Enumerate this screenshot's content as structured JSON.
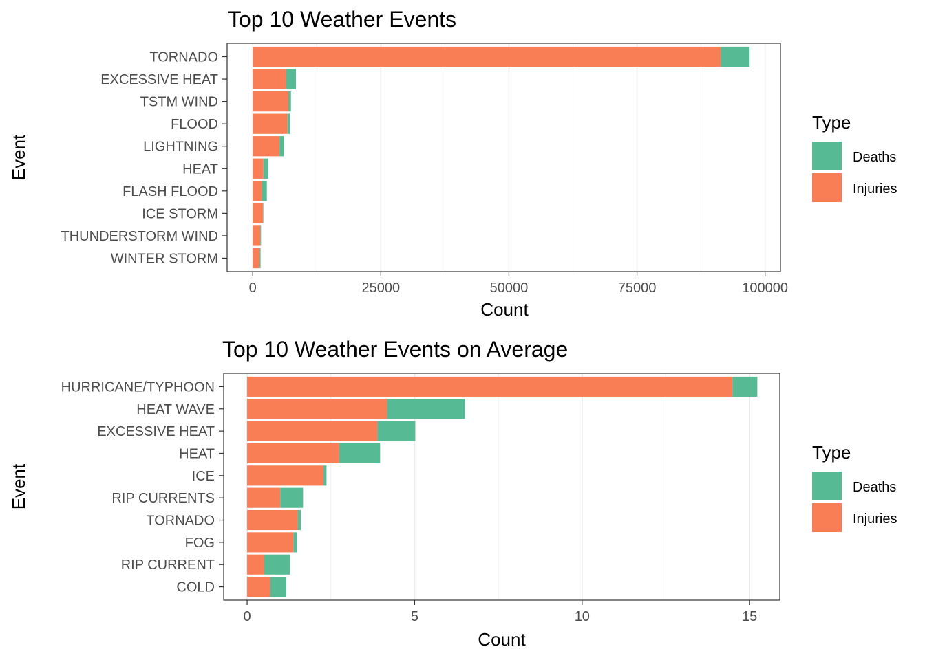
{
  "colors": {
    "deaths": "#56BA94",
    "injuries": "#F97E55",
    "panel_border": "#333333",
    "gridline": "#EBEBEB",
    "background": "#FFFFFF"
  },
  "chart_data": [
    {
      "type": "bar",
      "orientation": "horizontal",
      "stacked": true,
      "title": "Top 10 Weather Events",
      "xlabel": "Count",
      "ylabel": "Event",
      "xlim": [
        -5000,
        103000
      ],
      "xticks": [
        0,
        25000,
        50000,
        75000,
        100000
      ],
      "xtick_labels": [
        "0",
        "25000",
        "50000",
        "75000",
        "100000"
      ],
      "grid": true,
      "legend_position": "right",
      "legend_title": "Type",
      "categories": [
        "TORNADO",
        "EXCESSIVE HEAT",
        "TSTM WIND",
        "FLOOD",
        "LIGHTNING",
        "HEAT",
        "FLASH FLOOD",
        "ICE STORM",
        "THUNDERSTORM WIND",
        "WINTER STORM"
      ],
      "series": [
        {
          "name": "Injuries",
          "values": [
            91346,
            6525,
            6957,
            6789,
            5230,
            2100,
            1777,
            1975,
            1488,
            1321
          ]
        },
        {
          "name": "Deaths",
          "values": [
            5633,
            1903,
            504,
            470,
            816,
            937,
            978,
            89,
            133,
            206
          ]
        }
      ]
    },
    {
      "type": "bar",
      "orientation": "horizontal",
      "stacked": true,
      "title": "Top 10 Weather Events on Average",
      "xlabel": "Count",
      "ylabel": "Event",
      "xlim": [
        -0.7,
        15.9
      ],
      "xticks": [
        0,
        5,
        10,
        15
      ],
      "xtick_labels": [
        "0",
        "5",
        "10",
        "15"
      ],
      "grid": true,
      "legend_position": "right",
      "legend_title": "Type",
      "categories": [
        "HURRICANE/TYPHOON",
        "HEAT WAVE",
        "EXCESSIVE HEAT",
        "HEAT",
        "ICE",
        "RIP CURRENTS",
        "TORNADO",
        "FOG",
        "RIP CURRENT",
        "COLD"
      ],
      "series": [
        {
          "name": "Injuries",
          "values": [
            14.49,
            4.18,
            3.89,
            2.75,
            2.28,
            0.99,
            1.51,
            1.38,
            0.51,
            0.69
          ]
        },
        {
          "name": "Deaths",
          "values": [
            0.74,
            2.32,
            1.13,
            1.22,
            0.09,
            0.68,
            0.09,
            0.11,
            0.77,
            0.48
          ]
        }
      ]
    }
  ]
}
